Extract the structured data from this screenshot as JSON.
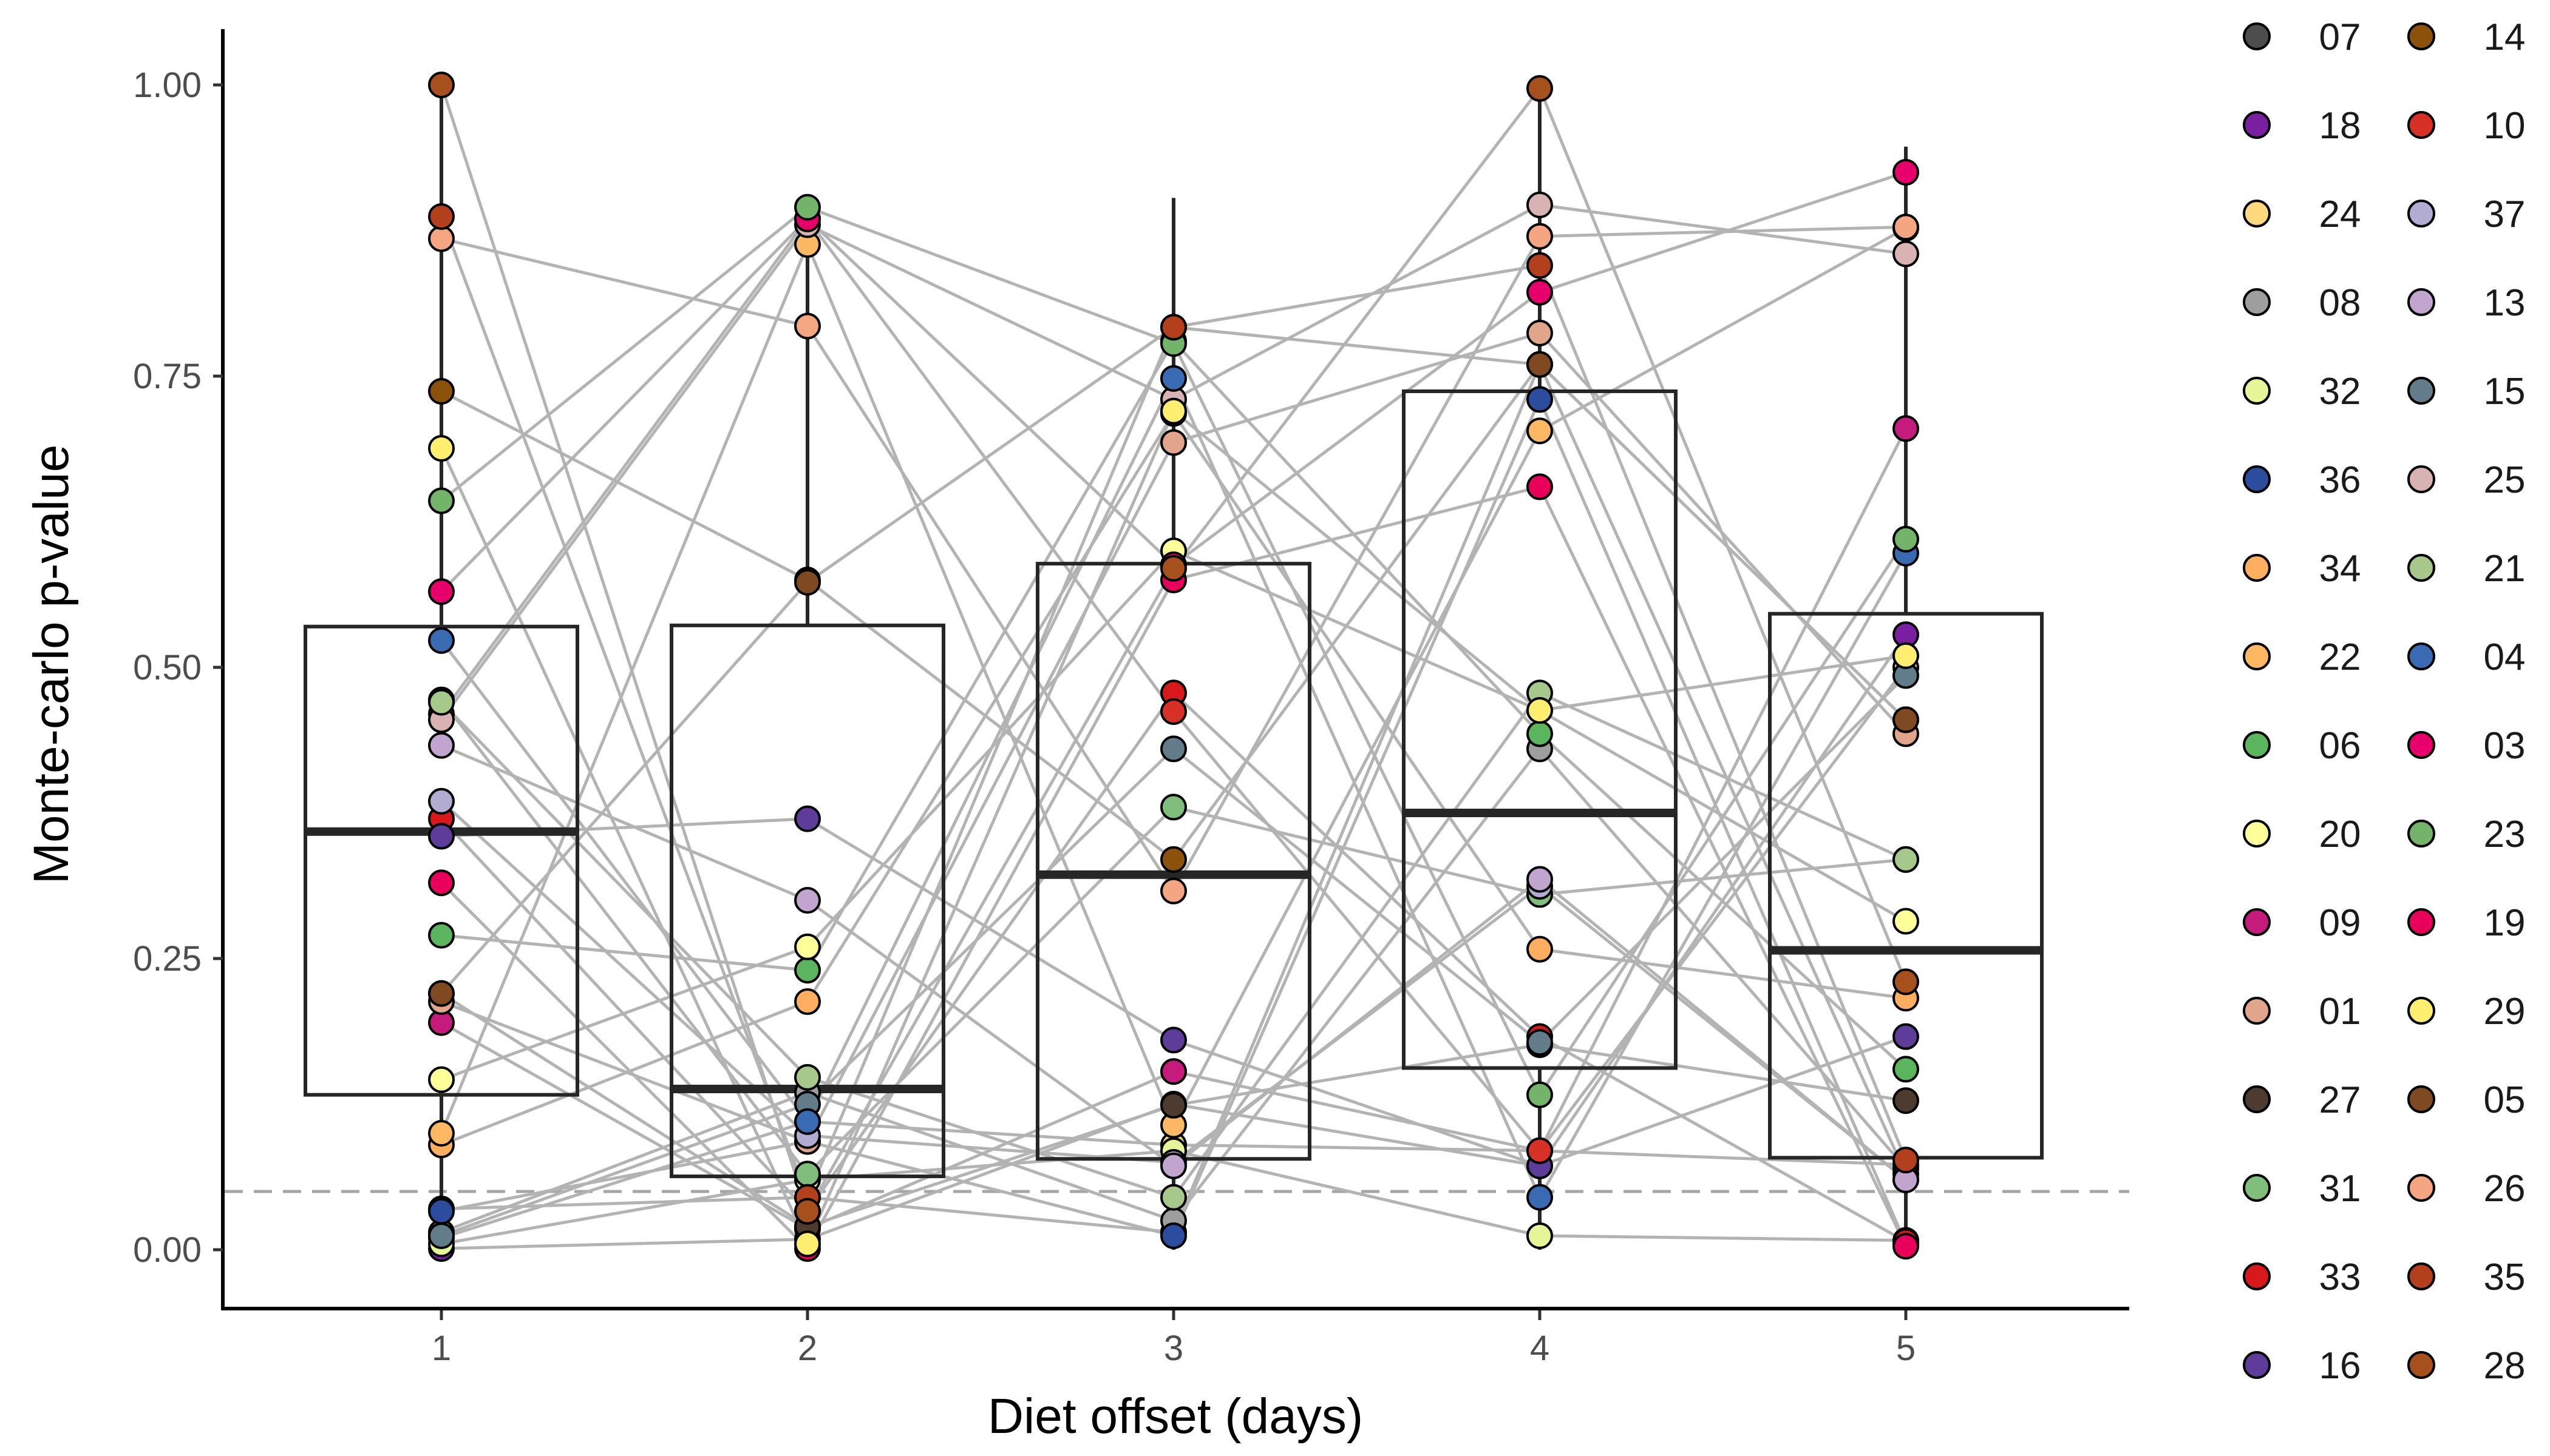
{
  "chart_data": {
    "type": "box",
    "xlabel": "Diet offset (days)",
    "ylabel": "Monte-carlo p-value",
    "x_ticks": [
      "1",
      "2",
      "3",
      "4",
      "5"
    ],
    "y_ticks": [
      "0.00",
      "0.25",
      "0.50",
      "0.75",
      "1.00"
    ],
    "ylim": [
      -0.05,
      1.05
    ],
    "reference_line": {
      "y": 0.05,
      "style": "dashed",
      "color": "#a6a6a6"
    },
    "boxes": [
      {
        "x": 1,
        "q1": 0.133,
        "median": 0.359,
        "q3": 0.535,
        "whisker_low": 0.0,
        "whisker_high": 1.0
      },
      {
        "x": 2,
        "q1": 0.063,
        "median": 0.138,
        "q3": 0.536,
        "whisker_low": 0.0,
        "whisker_high": 0.894
      },
      {
        "x": 3,
        "q1": 0.078,
        "median": 0.322,
        "q3": 0.589,
        "whisker_low": 0.0,
        "whisker_high": 0.903
      },
      {
        "x": 4,
        "q1": 0.156,
        "median": 0.375,
        "q3": 0.737,
        "whisker_low": 0.0,
        "whisker_high": 0.997
      },
      {
        "x": 5,
        "q1": 0.079,
        "median": 0.257,
        "q3": 0.546,
        "whisker_low": 0.003,
        "whisker_high": 0.947
      }
    ],
    "line_color": "#b3b3b3",
    "series": [
      {
        "name": "07",
        "color": "#4d4d4d",
        "values": [
          0.035,
          0.045,
          0.015,
          0.76,
          0.065
        ]
      },
      {
        "name": "18",
        "color": "#7b1fa2",
        "values": [
          0.001,
          0.009,
          0.125,
          0.072,
          0.528
        ]
      },
      {
        "name": "24",
        "color": "#ffd97d",
        "values": [
          0.01,
          0.11,
          0.09,
          0.085,
          0.5
        ]
      },
      {
        "name": "08",
        "color": "#9e9e9e",
        "values": [
          0.015,
          0.135,
          0.025,
          0.43,
          0.07
        ]
      },
      {
        "name": "32",
        "color": "#e6f598",
        "values": [
          0.005,
          0.06,
          0.085,
          0.012,
          0.008
        ]
      },
      {
        "name": "36",
        "color": "#2c4d9e",
        "values": [
          0.033,
          0.093,
          0.012,
          0.73,
          0.005
        ]
      },
      {
        "name": "34",
        "color": "#fdae61",
        "values": [
          0.09,
          0.213,
          0.718,
          0.258,
          0.216
        ]
      },
      {
        "name": "22",
        "color": "#fdb863",
        "values": [
          0.1,
          0.863,
          0.107,
          0.703,
          0.877
        ]
      },
      {
        "name": "06",
        "color": "#5ab55e",
        "values": [
          0.27,
          0.24,
          0.78,
          0.443,
          0.155
        ]
      },
      {
        "name": "20",
        "color": "#ffff99",
        "values": [
          0.146,
          0.26,
          0.6,
          0.463,
          0.282
        ]
      },
      {
        "name": "09",
        "color": "#c51b7d",
        "values": [
          0.195,
          0.018,
          0.153,
          0.085,
          0.705
        ]
      },
      {
        "name": "01",
        "color": "#e0a58a",
        "values": [
          0.213,
          0.093,
          0.693,
          0.787,
          0.443
        ]
      },
      {
        "name": "27",
        "color": "#4d3b30",
        "values": [
          0.22,
          0.02,
          0.124,
          0.176,
          0.128
        ]
      },
      {
        "name": "31",
        "color": "#7fbf7b",
        "values": [
          0.472,
          0.065,
          0.38,
          0.305,
          0.335
        ]
      },
      {
        "name": "33",
        "color": "#d7191c",
        "values": [
          0.37,
          0.033,
          0.478,
          0.183,
          0.007
        ]
      },
      {
        "name": "16",
        "color": "#5e3c99",
        "values": [
          0.355,
          0.37,
          0.18,
          0.072,
          0.183
        ]
      },
      {
        "name": "14",
        "color": "#8c510a",
        "values": [
          0.737,
          0.575,
          0.335,
          0.76,
          0.455
        ]
      },
      {
        "name": "10",
        "color": "#d73027",
        "values": [
          0.46,
          0.885,
          0.462,
          0.085,
          0.073
        ]
      },
      {
        "name": "37",
        "color": "#b2abd2",
        "values": [
          0.385,
          0.098,
          0.075,
          0.312,
          0.06
        ]
      },
      {
        "name": "13",
        "color": "#c2a5cf",
        "values": [
          0.433,
          0.3,
          0.072,
          0.318,
          0.06
        ]
      },
      {
        "name": "15",
        "color": "#637c8a",
        "values": [
          0.012,
          0.125,
          0.43,
          0.178,
          0.493
        ]
      },
      {
        "name": "25",
        "color": "#d9b3b3",
        "values": [
          0.455,
          0.88,
          0.73,
          0.897,
          0.855
        ]
      },
      {
        "name": "21",
        "color": "#a6c98b",
        "values": [
          0.47,
          0.148,
          0.045,
          0.478,
          0.335
        ]
      },
      {
        "name": "04",
        "color": "#3a6ab2",
        "values": [
          0.523,
          0.11,
          0.748,
          0.045,
          0.598
        ]
      },
      {
        "name": "03",
        "color": "#e7006b",
        "values": [
          0.565,
          0.885,
          0.588,
          0.822,
          0.925
        ]
      },
      {
        "name": "23",
        "color": "#74b46a",
        "values": [
          0.643,
          0.895,
          0.778,
          0.133,
          0.61
        ]
      },
      {
        "name": "19",
        "color": "#e8005a",
        "values": [
          0.315,
          0.001,
          0.575,
          0.655,
          0.003
        ]
      },
      {
        "name": "29",
        "color": "#ffee6f",
        "values": [
          0.688,
          0.005,
          0.72,
          0.463,
          0.51
        ]
      },
      {
        "name": "05",
        "color": "#7f4a22",
        "values": [
          0.22,
          0.573,
          0.792,
          0.76,
          0.455
        ]
      },
      {
        "name": "26",
        "color": "#f4a582",
        "values": [
          0.868,
          0.793,
          0.308,
          0.87,
          0.878
        ]
      },
      {
        "name": "35",
        "color": "#b2401d",
        "values": [
          0.887,
          0.045,
          0.792,
          0.845,
          0.077
        ]
      },
      {
        "name": "28",
        "color": "#a6501e",
        "values": [
          1.0,
          0.033,
          0.585,
          0.997,
          0.23
        ]
      }
    ]
  }
}
